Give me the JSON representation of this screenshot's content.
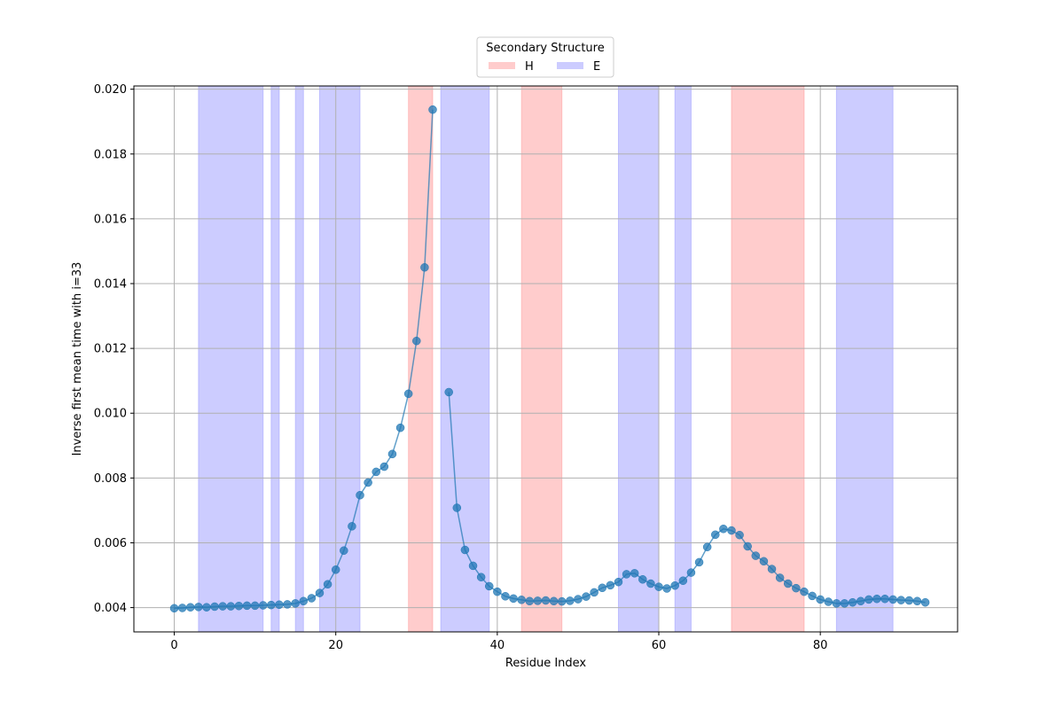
{
  "chart_data": {
    "type": "line",
    "xlabel": "Residue Index",
    "ylabel": "Inverse first mean time with i=33",
    "xlim": [
      -5,
      97
    ],
    "ylim": [
      0.00325,
      0.0201
    ],
    "xticks": [
      0,
      20,
      40,
      60,
      80
    ],
    "yticks": [
      0.004,
      0.006,
      0.008,
      0.01,
      0.012,
      0.014,
      0.016,
      0.018,
      0.02
    ],
    "ytick_labels": [
      "0.004",
      "0.006",
      "0.008",
      "0.010",
      "0.012",
      "0.014",
      "0.016",
      "0.018",
      "0.020"
    ],
    "grid": true,
    "line_color": "#1f77b4",
    "legend": {
      "title": "Secondary Structure",
      "placement": "top-center",
      "entries": [
        {
          "label": "H",
          "color": "#ff9999"
        },
        {
          "label": "E",
          "color": "#9999ff"
        }
      ]
    },
    "regions": [
      {
        "type": "E",
        "start": 3,
        "end": 11
      },
      {
        "type": "E",
        "start": 12,
        "end": 13
      },
      {
        "type": "E",
        "start": 15,
        "end": 16
      },
      {
        "type": "E",
        "start": 18,
        "end": 23
      },
      {
        "type": "H",
        "start": 29,
        "end": 32
      },
      {
        "type": "E",
        "start": 33,
        "end": 39
      },
      {
        "type": "H",
        "start": 43,
        "end": 48
      },
      {
        "type": "E",
        "start": 55,
        "end": 60
      },
      {
        "type": "E",
        "start": 62,
        "end": 64
      },
      {
        "type": "H",
        "start": 69,
        "end": 78
      },
      {
        "type": "E",
        "start": 82,
        "end": 89
      }
    ],
    "series": [
      {
        "x": [
          0,
          1,
          2,
          3,
          4,
          5,
          6,
          7,
          8,
          9,
          10,
          11,
          12,
          13,
          14,
          15,
          16,
          17,
          18,
          19,
          20,
          21,
          22,
          23,
          24,
          25,
          26,
          27,
          28,
          29,
          30,
          31,
          32
        ],
        "y": [
          0.00398,
          0.00399,
          0.00401,
          0.00402,
          0.00401,
          0.00403,
          0.00404,
          0.00404,
          0.00405,
          0.00406,
          0.00406,
          0.00407,
          0.00408,
          0.00409,
          0.0041,
          0.00413,
          0.0042,
          0.00429,
          0.00445,
          0.00472,
          0.00517,
          0.00576,
          0.00651,
          0.00747,
          0.00786,
          0.00819,
          0.00835,
          0.00874,
          0.00955,
          0.0106,
          0.01223,
          0.0145,
          0.01937
        ]
      },
      {
        "x": [
          34,
          35,
          36,
          37,
          38,
          39,
          40,
          41,
          42,
          43,
          44,
          45,
          46,
          47,
          48,
          49,
          50,
          51,
          52,
          53,
          54,
          55,
          56,
          57,
          58,
          59,
          60,
          61,
          62,
          63,
          64,
          65,
          66,
          67,
          68,
          69,
          70,
          71,
          72,
          73,
          74,
          75,
          76,
          77,
          78,
          79,
          80,
          81,
          82,
          83,
          84,
          85,
          86,
          87,
          88,
          89,
          90,
          91,
          92,
          93
        ],
        "y": [
          0.01065,
          0.00708,
          0.00578,
          0.00529,
          0.00494,
          0.00466,
          0.00449,
          0.00435,
          0.00428,
          0.00424,
          0.0042,
          0.00421,
          0.00422,
          0.0042,
          0.00419,
          0.00421,
          0.00426,
          0.00434,
          0.00447,
          0.00461,
          0.00469,
          0.00479,
          0.00503,
          0.00506,
          0.00487,
          0.00474,
          0.00464,
          0.00459,
          0.00468,
          0.00483,
          0.00508,
          0.0054,
          0.00587,
          0.00625,
          0.00643,
          0.00638,
          0.00624,
          0.00589,
          0.0056,
          0.00543,
          0.00519,
          0.00492,
          0.00474,
          0.0046,
          0.00449,
          0.00436,
          0.00425,
          0.00418,
          0.00413,
          0.00413,
          0.00416,
          0.0042,
          0.00425,
          0.00427,
          0.00427,
          0.00425,
          0.00423,
          0.00422,
          0.0042,
          0.00416
        ]
      }
    ]
  }
}
